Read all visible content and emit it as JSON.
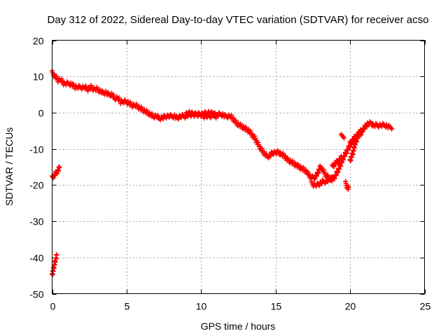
{
  "chart_data": {
    "type": "scatter",
    "title": "Day 312 of 2022, Sidereal Day-to-day VTEC variation (SDTVAR) for receiver acso",
    "xlabel": "GPS time / hours",
    "ylabel": "SDTVAR / TECUs",
    "xlim": [
      0,
      25
    ],
    "ylim": [
      -50,
      20
    ],
    "x_ticks": [
      0,
      5,
      10,
      15,
      20,
      25
    ],
    "y_ticks": [
      -50,
      -40,
      -30,
      -20,
      -10,
      0,
      10,
      20
    ],
    "grid": true,
    "marker": "+",
    "series": [
      {
        "name": "SDTVAR",
        "color": "#ff0000",
        "segments": [
          {
            "x": [
              0.0,
              0.2,
              0.4,
              0.6,
              0.8,
              1.0,
              1.2,
              1.4,
              1.6,
              1.8,
              2.0,
              2.2,
              2.4,
              2.6,
              2.8,
              3.0,
              3.2,
              3.4,
              3.6,
              3.8,
              4.0,
              4.2,
              4.4,
              4.6,
              4.8,
              5.0,
              5.2,
              5.4,
              5.6,
              5.8,
              6.0,
              6.2,
              6.4,
              6.6,
              6.8,
              7.0,
              7.2,
              7.4,
              7.6,
              7.8,
              8.0,
              8.2,
              8.4,
              8.6,
              8.8,
              9.0,
              9.2,
              9.4,
              9.6,
              9.8,
              10.0,
              10.2,
              10.4,
              10.6,
              10.8,
              11.0,
              11.2,
              11.4,
              11.6,
              11.8,
              12.0,
              12.2,
              12.4,
              12.6,
              12.8,
              13.0,
              13.2,
              13.4,
              13.6,
              13.8,
              14.0,
              14.2,
              14.4,
              14.6,
              14.8,
              15.0,
              15.2,
              15.4,
              15.6,
              15.8,
              16.0,
              16.2,
              16.4,
              16.6,
              16.8,
              17.0,
              17.2,
              17.4,
              17.6,
              17.8,
              18.0,
              18.2,
              18.4,
              18.6,
              18.8,
              19.0,
              19.2,
              19.4,
              19.6,
              19.8,
              20.0,
              20.2,
              20.4,
              20.6,
              20.8,
              21.0,
              21.2,
              21.4,
              21.6,
              21.8,
              22.0,
              22.2,
              22.4,
              22.6,
              22.8
            ],
            "y": [
              11,
              10,
              9,
              9,
              8,
              8,
              8,
              7.5,
              7,
              7,
              7,
              7,
              6.5,
              7,
              6.5,
              6.5,
              6,
              5.5,
              5.5,
              5,
              5,
              4,
              4,
              3,
              3,
              3,
              2.5,
              2,
              2,
              1.5,
              1,
              0.5,
              0,
              -0.5,
              -1,
              -1,
              -1.5,
              -1.5,
              -1,
              -1,
              -1,
              -1,
              -1.5,
              -1,
              -1,
              -1,
              -0.5,
              -0.5,
              -0.5,
              -0.5,
              -0.5,
              -1,
              -1,
              -1,
              -0.5,
              -1,
              -0.5,
              -0.5,
              -1,
              -1,
              -1,
              -2,
              -3,
              -3.5,
              -4,
              -4.5,
              -5,
              -6,
              -7,
              -8.5,
              -10,
              -11,
              -12,
              -12,
              -11,
              -11,
              -11,
              -11.5,
              -12,
              -13,
              -13.5,
              -14,
              -14.5,
              -15,
              -15.5,
              -16,
              -17,
              -18,
              -18,
              -17,
              -15,
              -16,
              -17.5,
              -18,
              -18.5,
              -17.5,
              -16,
              -14,
              -12,
              -10.5,
              -9,
              -8,
              -7,
              -5.5,
              -5,
              -4,
              -3,
              -3,
              -3.5,
              -3.5,
              -3.5,
              -3.5,
              -3.5,
              -4,
              -4
            ]
          },
          {
            "x": [
              0.0,
              0.1,
              0.2,
              0.3,
              0.4,
              0.5
            ],
            "y": [
              -18,
              -17.5,
              -17,
              -16.5,
              -16,
              -15
            ]
          },
          {
            "x": [
              0.0,
              0.05,
              0.1,
              0.15,
              0.2,
              0.25,
              0.3
            ],
            "y": [
              -45,
              -44,
              -43,
              -42,
              -41,
              -40.5,
              -39.5
            ]
          },
          {
            "x": [
              9.0,
              9.2,
              9.5,
              10.0,
              10.5,
              11.0
            ],
            "y": [
              -0.5,
              0,
              -0.5,
              -0.5,
              0,
              -0.5
            ]
          },
          {
            "x": [
              19.4,
              19.6
            ],
            "y": [
              -6.5,
              -6.5
            ]
          },
          {
            "x": [
              19.7,
              19.8,
              19.9
            ],
            "y": [
              -19.5,
              -20.5,
              -21
            ]
          },
          {
            "x": [
              20.0,
              20.1,
              20.2,
              20.3,
              20.4,
              20.5,
              20.6,
              20.7
            ],
            "y": [
              -13.5,
              -12,
              -11,
              -9,
              -8,
              -7,
              -6,
              -5
            ]
          },
          {
            "x": [
              17.4,
              17.6,
              17.8,
              18.0,
              18.2,
              18.4,
              18.6,
              18.8
            ],
            "y": [
              -19.5,
              -20,
              -20,
              -19.5,
              -19,
              -19,
              -18.5,
              -18
            ]
          },
          {
            "x": [
              18.8,
              19.0,
              19.2,
              19.4
            ],
            "y": [
              -15,
              -14,
              -13.5,
              -12.5
            ]
          },
          {
            "x": [
              20.0,
              20.2,
              20.4,
              20.6,
              20.8
            ],
            "y": [
              -8.5,
              -7.5,
              -6.5,
              -6,
              -5.5
            ]
          }
        ]
      }
    ]
  }
}
